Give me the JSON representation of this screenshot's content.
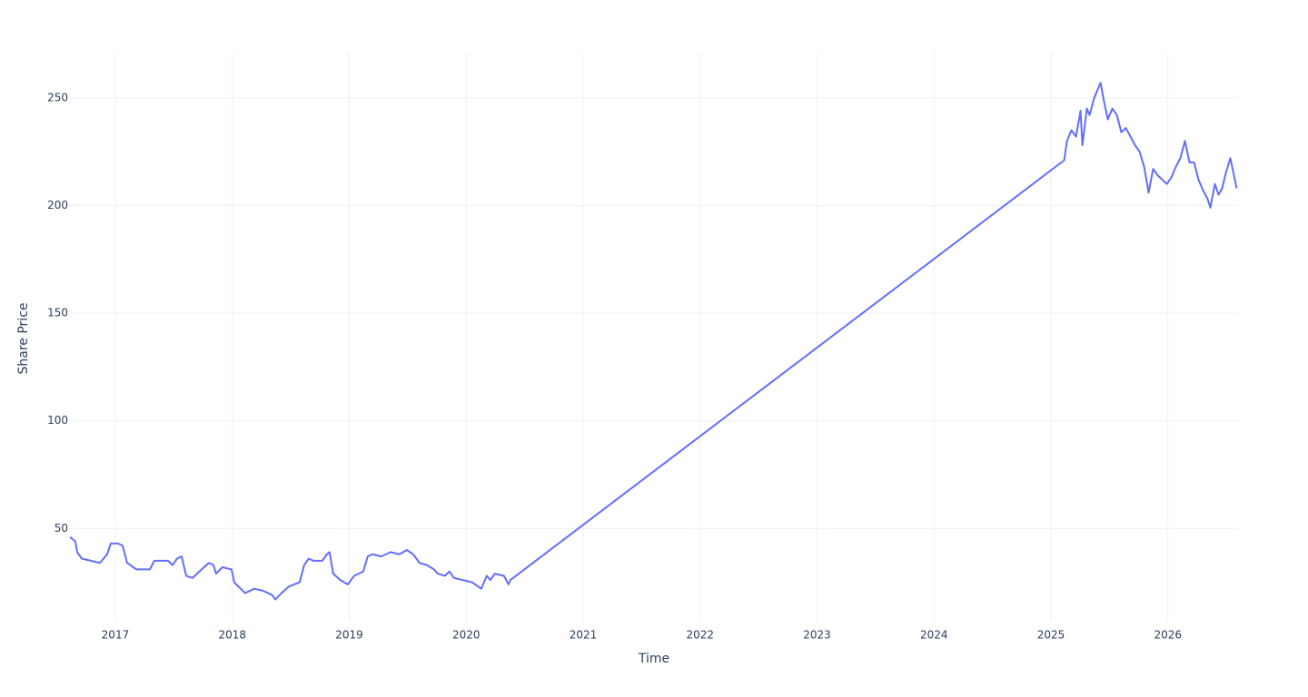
{
  "chart_data": {
    "type": "line",
    "x_label": "Time",
    "y_label": "Share Price",
    "x": [
      2016.612,
      2016.658,
      2016.674,
      2016.713,
      2016.868,
      2016.93,
      2016.961,
      2017.023,
      2017.062,
      2017.101,
      2017.179,
      2017.295,
      2017.334,
      2017.45,
      2017.489,
      2017.528,
      2017.567,
      2017.606,
      2017.66,
      2017.738,
      2017.8,
      2017.839,
      2017.862,
      2017.916,
      2017.994,
      2018.017,
      2018.071,
      2018.11,
      2018.188,
      2018.266,
      2018.343,
      2018.367,
      2018.421,
      2018.483,
      2018.576,
      2018.615,
      2018.654,
      2018.693,
      2018.77,
      2018.809,
      2018.832,
      2018.863,
      2018.925,
      2018.988,
      2019.042,
      2019.12,
      2019.158,
      2019.197,
      2019.275,
      2019.353,
      2019.43,
      2019.492,
      2019.547,
      2019.601,
      2019.663,
      2019.725,
      2019.756,
      2019.818,
      2019.857,
      2019.896,
      2019.974,
      2020.051,
      2020.129,
      2020.176,
      2020.207,
      2020.245,
      2020.323,
      2020.362,
      2020.377,
      2025.113,
      2025.137,
      2025.176,
      2025.214,
      2025.253,
      2025.269,
      2025.307,
      2025.331,
      2025.37,
      2025.424,
      2025.455,
      2025.486,
      2025.525,
      2025.564,
      2025.602,
      2025.641,
      2025.68,
      2025.719,
      2025.758,
      2025.797,
      2025.835,
      2025.874,
      2025.913,
      2025.952,
      2025.991,
      2026.03,
      2026.068,
      2026.107,
      2026.146,
      2026.185,
      2026.224,
      2026.262,
      2026.301,
      2026.34,
      2026.363,
      2026.402,
      2026.433,
      2026.464,
      2026.495,
      2026.534,
      2026.573,
      2026.588
    ],
    "series": [
      {
        "name": "Share Price",
        "color": "#636efa",
        "values": [
          46,
          44,
          39,
          36,
          34,
          38,
          43,
          43,
          42,
          34,
          31,
          31,
          35,
          35,
          33,
          36,
          37,
          28,
          27,
          31,
          34,
          33,
          29,
          32,
          31,
          25,
          22,
          20,
          22,
          21,
          19,
          17,
          20,
          23,
          25,
          33,
          36,
          35,
          35,
          38,
          39,
          29,
          26,
          24,
          28,
          30,
          37,
          38,
          37,
          39,
          38,
          40,
          38,
          34,
          33,
          31,
          29,
          28,
          30,
          27,
          26,
          25,
          22,
          28,
          26,
          29,
          28,
          24,
          26,
          221,
          230,
          235,
          232,
          244,
          228,
          245,
          242,
          250,
          257,
          248,
          240,
          245,
          242,
          234,
          236,
          232,
          228,
          225,
          218,
          206,
          217,
          214,
          212,
          210,
          213,
          218,
          222,
          230,
          220,
          220,
          212,
          207,
          203,
          199,
          210,
          205,
          208,
          215,
          222,
          212,
          208
        ]
      }
    ],
    "xlim": [
      2016.612,
      2026.6
    ],
    "xticks": [
      2017,
      2018,
      2019,
      2020,
      2021,
      2022,
      2023,
      2024,
      2025,
      2026
    ],
    "ylim": [
      6.7,
      271
    ],
    "yticks": [
      50,
      100,
      150,
      200,
      250
    ],
    "grid": true
  }
}
